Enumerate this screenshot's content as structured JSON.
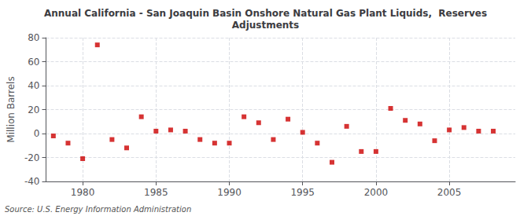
{
  "chart_data": {
    "type": "scatter",
    "title": "Annual California - San Joaquin Basin Onshore Natural Gas Plant Liquids,  Reserves\nAdjustments",
    "ylabel": "Million Barrels",
    "annotation": "Source: U.S. Energy Information Administration",
    "x": [
      1978,
      1979,
      1980,
      1981,
      1982,
      1983,
      1984,
      1985,
      1986,
      1987,
      1988,
      1989,
      1990,
      1991,
      1992,
      1993,
      1994,
      1995,
      1996,
      1997,
      1998,
      1999,
      2000,
      2001,
      2002,
      2003,
      2004,
      2005,
      2006,
      2007,
      2008
    ],
    "values": [
      -2,
      -8,
      -21,
      74,
      -5,
      -12,
      14,
      2,
      3,
      2,
      -5,
      -8,
      -8,
      14,
      9,
      -5,
      12,
      1,
      -8,
      -24,
      6,
      -15,
      -15,
      21,
      11,
      8,
      -6,
      3,
      5,
      2,
      2
    ],
    "color": "#cc0000",
    "marker": "square",
    "xlim": [
      1977.5,
      2009.5
    ],
    "xticks": [
      1980,
      1985,
      1990,
      1995,
      2000,
      2005
    ],
    "ylim": [
      -40,
      80
    ],
    "yticks": [
      -40,
      -20,
      0,
      20,
      40,
      60,
      80
    ],
    "grid": true
  }
}
